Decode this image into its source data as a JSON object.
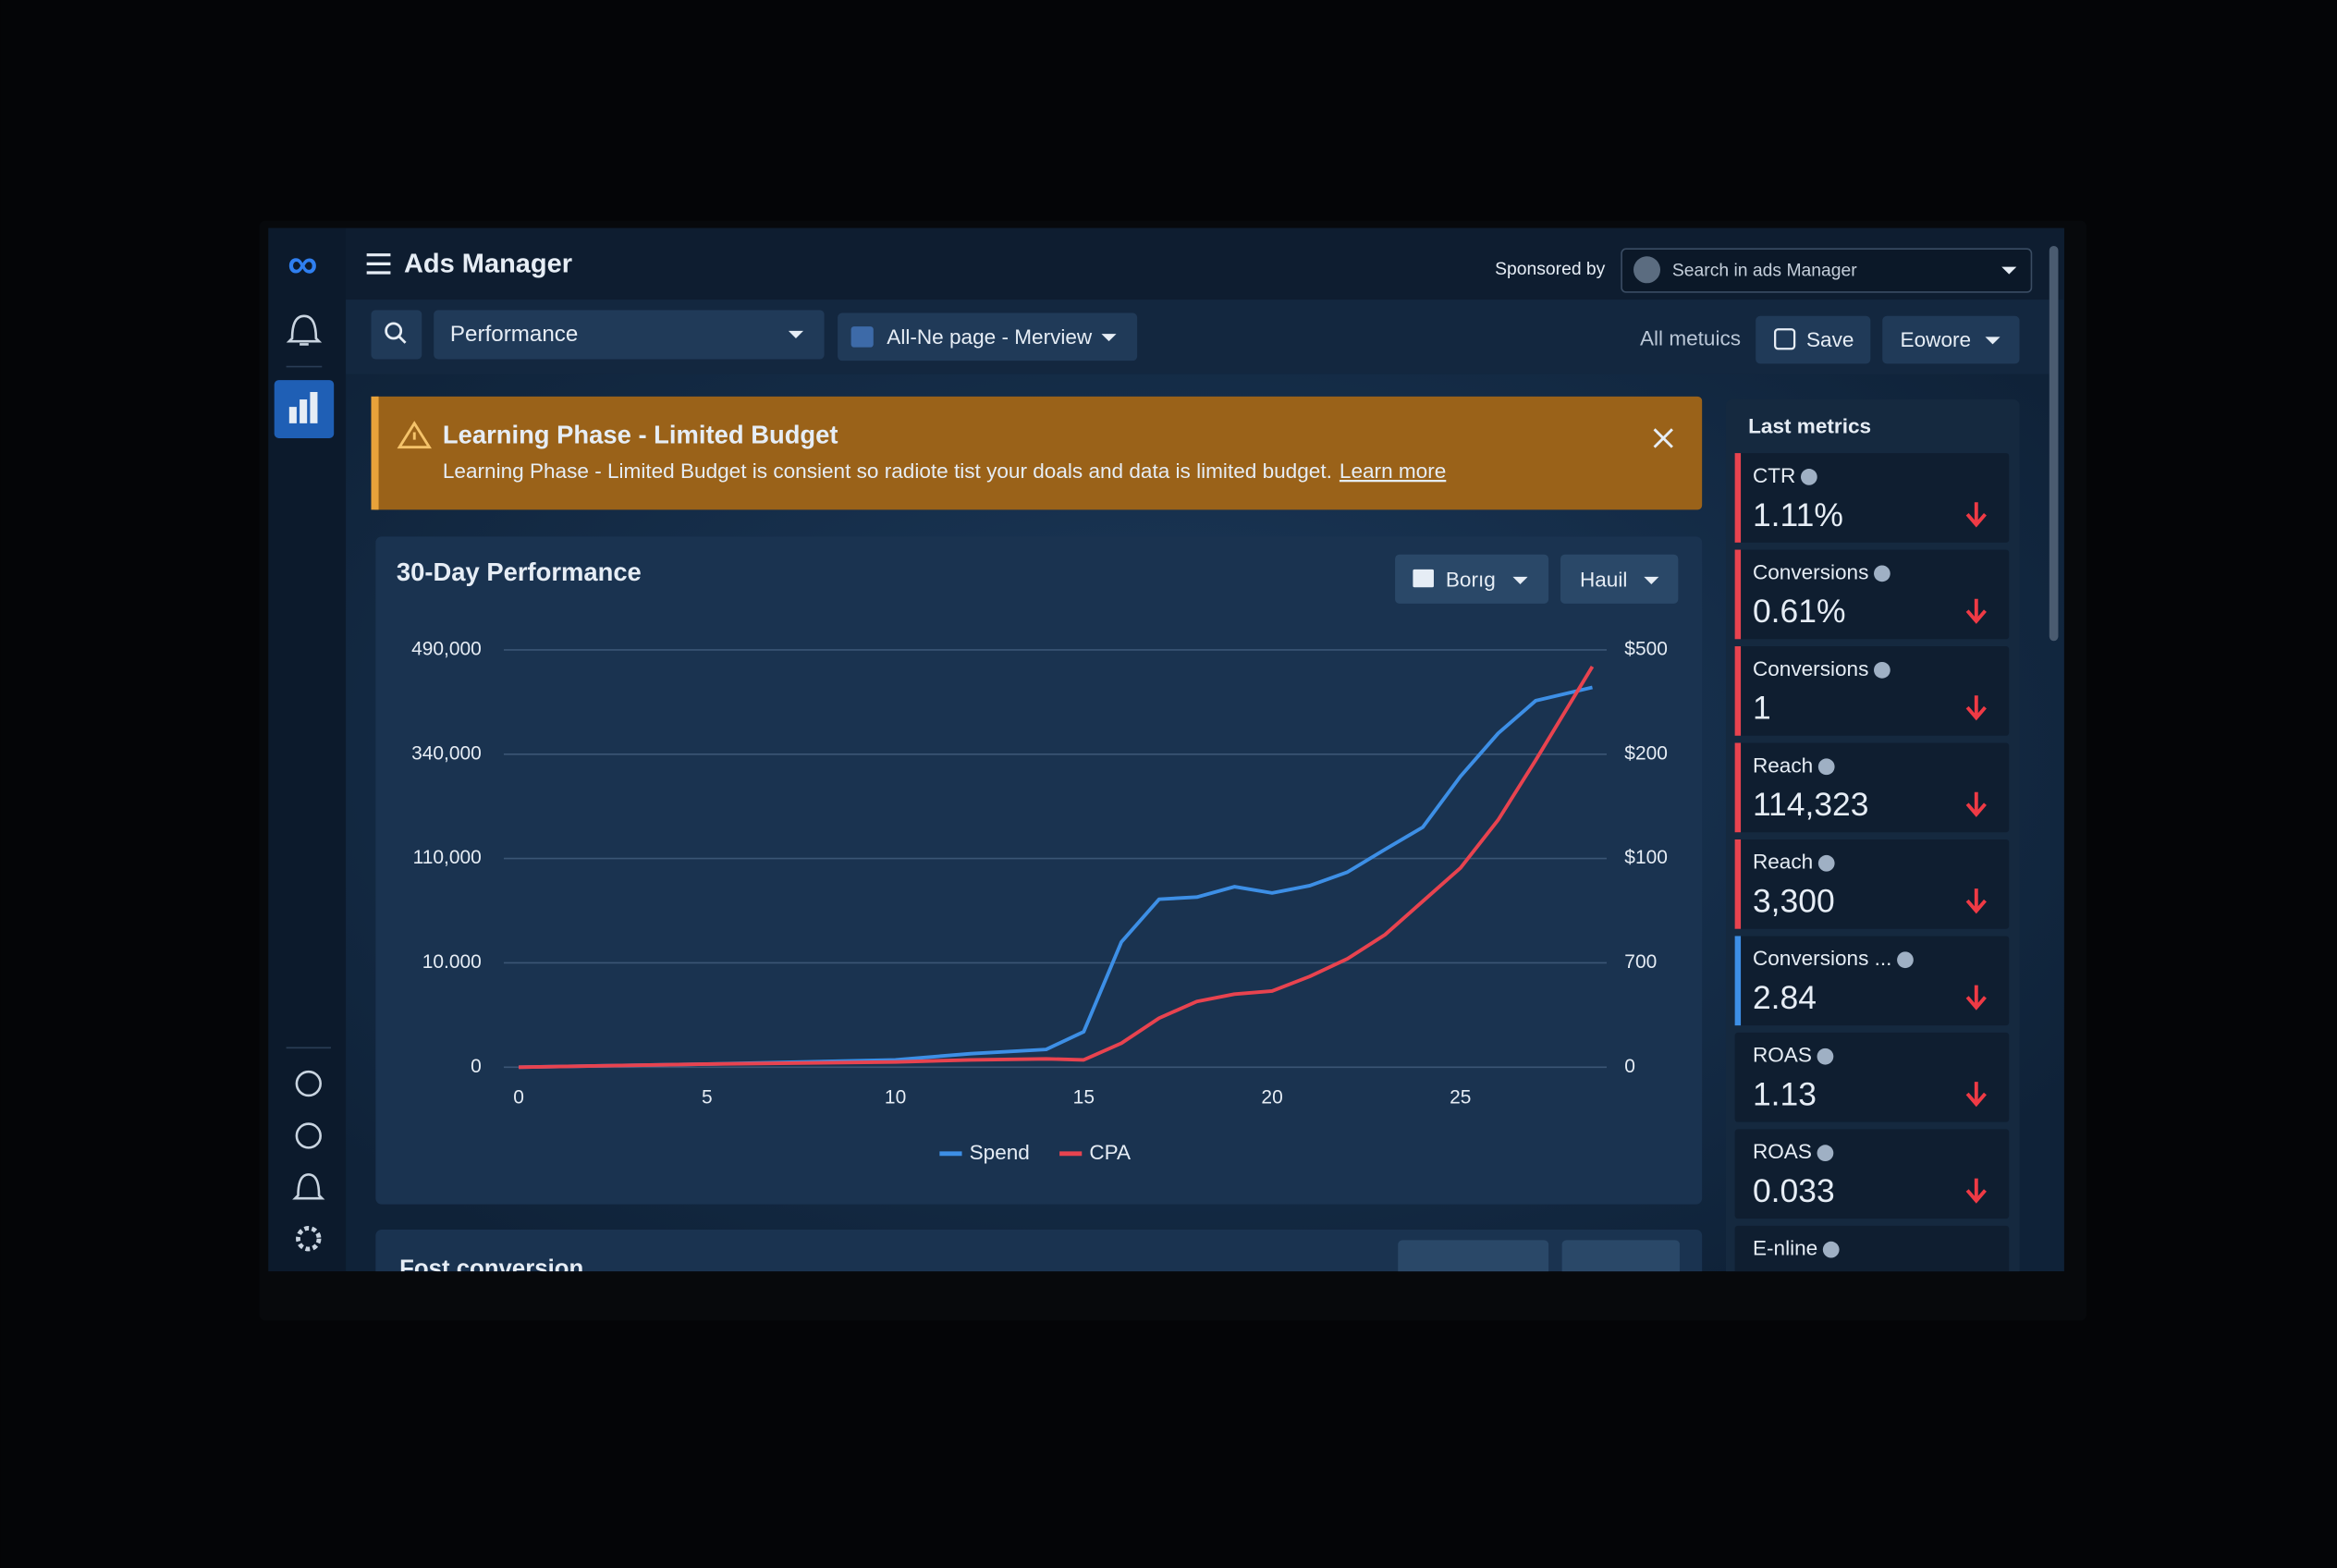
{
  "app": {
    "title": "Ads Manager",
    "sponsored_label": "Sponsored by",
    "search_placeholder": "Search in ads Manager"
  },
  "toolbar": {
    "view": "Performance",
    "page": "All-Ne page - Merview",
    "all_metrics": "All metuics",
    "save": "Save",
    "export": "Eowore"
  },
  "alert": {
    "title": "Learning Phase - Limited Budget",
    "message": "Learning Phase - Limited Budget is consient so radiote tist your doals and data is limited budget.",
    "link": "Learn more"
  },
  "chart_controls": [
    "Borıg",
    "Hauil"
  ],
  "chart_data": {
    "type": "line",
    "title": "30-Day Performance",
    "x": [
      0,
      5,
      10,
      12,
      14,
      15,
      16,
      17,
      18,
      19,
      20,
      21,
      22,
      23,
      24,
      25,
      26,
      27,
      28.5
    ],
    "series": [
      {
        "name": "Spend",
        "color": "#3d8fe6",
        "values": [
          0,
          300,
          700,
          1300,
          1700,
          3400,
          30000,
          71000,
          73000,
          83000,
          77000,
          84000,
          97000,
          130000,
          179000,
          291000,
          370000,
          417000,
          436000
        ]
      },
      {
        "name": "CPA",
        "color": "#e8434f",
        "values": [
          0,
          300,
          500,
          700,
          800,
          700,
          2300,
          4700,
          6300,
          7000,
          7300,
          8700,
          14000,
          37000,
          69000,
          101000,
          195000,
          327000,
          466000
        ]
      }
    ],
    "xlim": [
      0,
      29
    ],
    "xticks": [
      0,
      5,
      10,
      15,
      20,
      25
    ],
    "ylim": [
      0,
      490000
    ],
    "yticks": [
      0,
      {
        "value": 10000,
        "label": "10.000"
      },
      {
        "value": 110000,
        "label": "110,000"
      },
      {
        "value": 340000,
        "label": "340,000"
      },
      {
        "value": 490000,
        "label": "490,000"
      }
    ],
    "y2ticks": [
      0,
      700,
      {
        "value": 100,
        "label": "$100"
      },
      {
        "value": 200,
        "label": "$200"
      },
      {
        "value": 500,
        "label": "$500"
      }
    ],
    "grid": true,
    "legend": "bottom"
  },
  "metrics": {
    "title": "Last metrics",
    "items": [
      {
        "label": "CTR",
        "value": "1.11%",
        "accent": "#e8434f"
      },
      {
        "label": "Conversions",
        "value": "0.61%",
        "accent": "#e8434f"
      },
      {
        "label": "Conversions",
        "value": "1",
        "accent": "#e8434f"
      },
      {
        "label": "Reach",
        "value": "114,323",
        "accent": "#e8434f"
      },
      {
        "label": "Reach",
        "value": "3,300",
        "accent": "#e8434f"
      },
      {
        "label": "Conversions ...",
        "value": "2.84",
        "accent": "#3d8fe6"
      },
      {
        "label": "ROAS",
        "value": "1.13"
      },
      {
        "label": "ROAS",
        "value": "0.033"
      },
      {
        "label": "E-nline"
      }
    ]
  },
  "next_section": {
    "title": "Fost conversion"
  }
}
